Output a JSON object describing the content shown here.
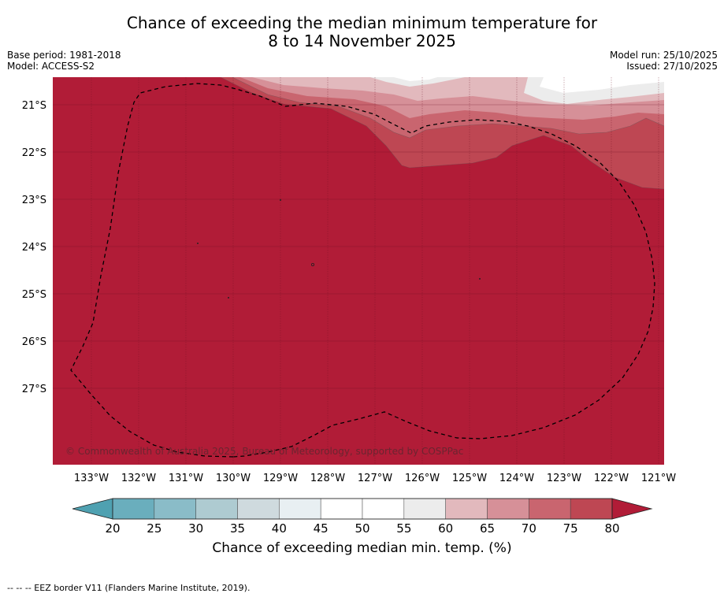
{
  "header": {
    "title_line1": "Chance of exceeding the median minimum temperature for",
    "title_line2": "8 to 14 November 2025",
    "base_period": "Base period: 1981-2018",
    "model": "Model: ACCESS-S2",
    "model_run": "Model run: 25/10/2025",
    "issued": "Issued: 27/10/2025"
  },
  "map": {
    "lat_labels": [
      "21°S",
      "22°S",
      "23°S",
      "24°S",
      "25°S",
      "26°S",
      "27°S"
    ],
    "lon_labels": [
      "133°W",
      "132°W",
      "131°W",
      "130°W",
      "129°W",
      "128°W",
      "127°W",
      "126°W",
      "125°W",
      "124°W",
      "123°W",
      "122°W",
      "121°W"
    ],
    "copyright": "© Commonwealth of Australia 2025, Bureau of Meteorology, supported by COSPPac",
    "colors": {
      "c80": "#b11c37",
      "c75": "#be4753",
      "c70": "#c9656f",
      "c65": "#d69098",
      "c60": "#e2b9bd",
      "c55": "#ececec",
      "c50": "#ffffff"
    }
  },
  "colorbar": {
    "ticks": [
      "20",
      "25",
      "30",
      "35",
      "40",
      "45",
      "50",
      "55",
      "60",
      "65",
      "70",
      "75",
      "80"
    ],
    "colors": [
      "#6aaebd",
      "#8abcc8",
      "#aecbd1",
      "#cfdade",
      "#e8eff2",
      "#ffffff",
      "#ffffff",
      "#ececec",
      "#e2b9bd",
      "#d69098",
      "#c9656f",
      "#be4753"
    ],
    "under_color": "#4fa1b1",
    "over_color": "#b11c37",
    "label": "Chance of exceeding median min. temp. (%)"
  },
  "footnote": "--  --  -- EEZ border V11 (Flanders Marine Institute, 2019)."
}
